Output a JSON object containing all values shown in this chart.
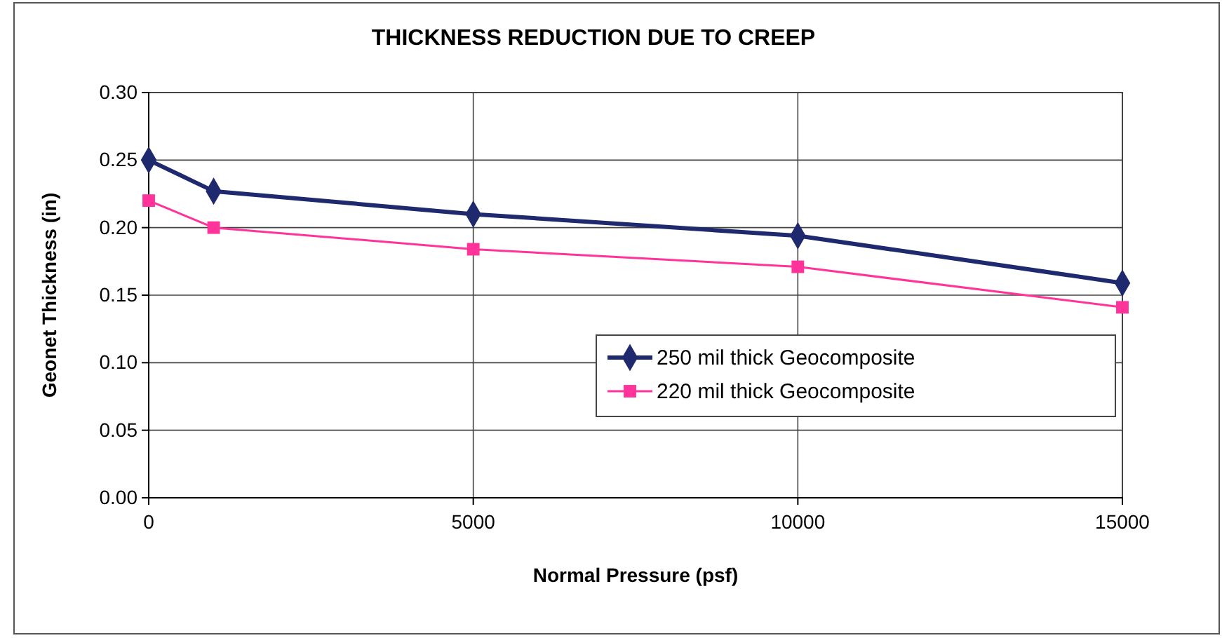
{
  "chart_data": {
    "type": "line",
    "title": "THICKNESS REDUCTION DUE TO CREEP",
    "xlabel": "Normal Pressure (psf)",
    "ylabel": "Geonet Thickness (in)",
    "x": [
      0,
      1000,
      5000,
      10000,
      15000
    ],
    "series": [
      {
        "name": "250 mil thick Geocomposite",
        "color": "#1f2a6e",
        "marker": "diamond",
        "values": [
          0.25,
          0.227,
          0.21,
          0.194,
          0.159
        ]
      },
      {
        "name": "220 mil thick Geocomposite",
        "color": "#ff3399",
        "marker": "square",
        "values": [
          0.22,
          0.2,
          0.184,
          0.171,
          0.141
        ]
      }
    ],
    "xlim": [
      0,
      15000
    ],
    "xticks": [
      0,
      5000,
      10000,
      15000
    ],
    "ylim": [
      0,
      0.3
    ],
    "yticks": [
      {
        "value": 0,
        "label": "0.00"
      },
      {
        "value": 0.05,
        "label": "0.05"
      },
      {
        "value": 0.1,
        "label": "0.10"
      },
      {
        "value": 0.15,
        "label": "0.15"
      },
      {
        "value": 0.2,
        "label": "0.20"
      },
      {
        "value": 0.25,
        "label": "0.25"
      },
      {
        "value": 0.3,
        "label": "0.30"
      }
    ],
    "grid": true,
    "legend": "bottom right",
    "line_style": "solid"
  }
}
